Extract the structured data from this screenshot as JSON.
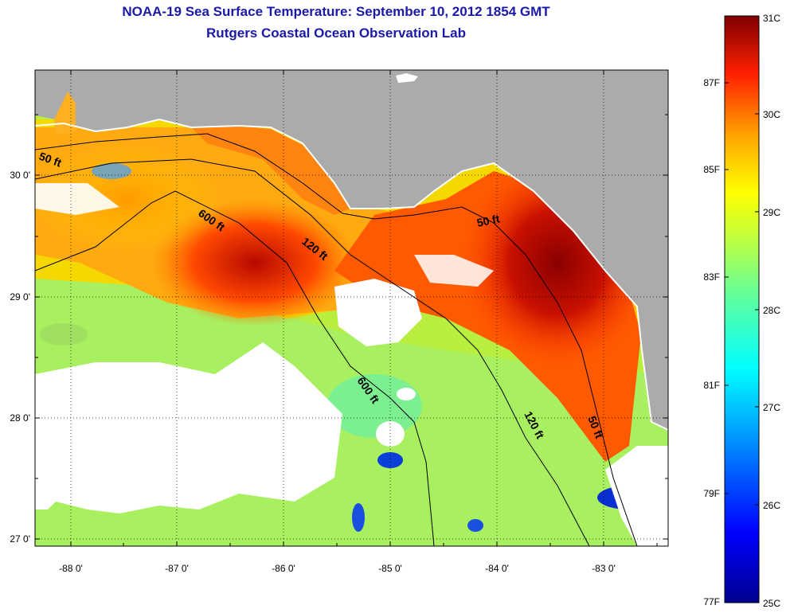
{
  "header": {
    "title": "NOAA-19 Sea Surface Temperature:  September 10, 2012 1854 GMT",
    "subtitle": "Rutgers Coastal Ocean Observation Lab"
  },
  "map": {
    "x_ticks": [
      "-88 0'",
      "-87 0'",
      "-86 0'",
      "-85 0'",
      "-84 0'",
      "-83 0'"
    ],
    "y_ticks": [
      "30 0'",
      "29 0'",
      "28 0'",
      "27 0'"
    ],
    "contour_labels": [
      "50 ft",
      "600 ft",
      "120 ft",
      "50 ft",
      "600 ft",
      "120 ft",
      "50 ft"
    ]
  },
  "colorbar": {
    "celsius_labels": [
      "31C",
      "30C",
      "29C",
      "28C",
      "27C",
      "26C",
      "25C"
    ],
    "fahrenheit_labels": [
      "87F",
      "85F",
      "83F",
      "81F",
      "79F",
      "77F"
    ]
  },
  "colors": {
    "title": "#1a1aa8",
    "land": "#ababab",
    "cloud": "#ffffff"
  }
}
